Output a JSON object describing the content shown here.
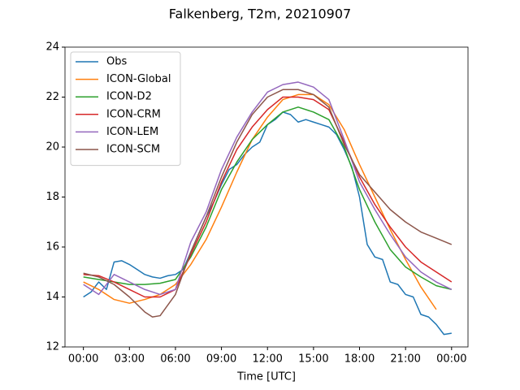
{
  "chart_data": {
    "type": "line",
    "title": "Falkenberg, T2m, 20210907",
    "xlabel": "Time [UTC]",
    "xlim": [
      -1.2,
      25.07
    ],
    "ylim": [
      12,
      24
    ],
    "xticks": [
      {
        "value": 0,
        "label": "00:00"
      },
      {
        "value": 3,
        "label": "03:00"
      },
      {
        "value": 6,
        "label": "06:00"
      },
      {
        "value": 9,
        "label": "09:00"
      },
      {
        "value": 12,
        "label": "12:00"
      },
      {
        "value": 15,
        "label": "15:00"
      },
      {
        "value": 18,
        "label": "18:00"
      },
      {
        "value": 21,
        "label": "21:00"
      },
      {
        "value": 24,
        "label": "00:00"
      }
    ],
    "yticks": [
      12,
      14,
      16,
      18,
      20,
      22,
      24
    ],
    "legend": "upper left",
    "series": [
      {
        "name": "Obs",
        "color": "#1f77b4",
        "x": [
          0,
          0.5,
          1,
          1.5,
          2,
          2.5,
          3,
          3.5,
          4,
          4.5,
          5,
          5.5,
          6,
          6.5,
          7,
          7.5,
          8,
          8.5,
          9,
          9.5,
          10,
          10.5,
          11,
          11.5,
          12,
          12.5,
          13,
          13.5,
          14,
          14.5,
          15,
          15.5,
          16,
          16.5,
          17,
          17.5,
          18,
          18.5,
          19,
          19.5,
          20,
          20.5,
          21,
          21.5,
          22,
          22.5,
          23,
          23.5,
          24
        ],
        "values": [
          14.0,
          14.2,
          14.6,
          14.3,
          15.4,
          15.45,
          15.3,
          15.1,
          14.9,
          14.8,
          14.75,
          14.85,
          14.9,
          15.1,
          15.8,
          16.5,
          17.2,
          17.8,
          18.5,
          19.1,
          19.3,
          19.7,
          20.0,
          20.2,
          20.9,
          21.1,
          21.4,
          21.3,
          21.0,
          21.1,
          21.0,
          20.9,
          20.8,
          20.5,
          19.9,
          19.2,
          18.0,
          16.1,
          15.6,
          15.5,
          14.6,
          14.5,
          14.1,
          14.0,
          13.3,
          13.2,
          12.9,
          12.5,
          12.55
        ]
      },
      {
        "name": "ICON-Global",
        "color": "#ff7f0e",
        "x": [
          0,
          1,
          2,
          3,
          4,
          5,
          6,
          7,
          8,
          9,
          10,
          11,
          12,
          13,
          14,
          15,
          16,
          17,
          18,
          19,
          20,
          21,
          22,
          23
        ],
        "values": [
          14.6,
          14.3,
          13.9,
          13.75,
          13.9,
          14.1,
          14.5,
          15.3,
          16.3,
          17.6,
          19.0,
          20.3,
          21.2,
          21.9,
          22.1,
          22.1,
          21.7,
          20.7,
          19.3,
          18.0,
          16.7,
          15.5,
          14.4,
          13.5
        ]
      },
      {
        "name": "ICON-D2",
        "color": "#2ca02c",
        "x": [
          0,
          1,
          2,
          3,
          4,
          5,
          6,
          7,
          8,
          9,
          10,
          11,
          12,
          13,
          14,
          15,
          16,
          17,
          18,
          19,
          20,
          21,
          22,
          23,
          24
        ],
        "values": [
          14.8,
          14.7,
          14.6,
          14.5,
          14.5,
          14.55,
          14.7,
          15.6,
          16.8,
          18.3,
          19.4,
          20.3,
          20.9,
          21.4,
          21.6,
          21.4,
          21.1,
          20.0,
          18.3,
          17.0,
          15.9,
          15.2,
          14.8,
          14.45,
          14.3
        ]
      },
      {
        "name": "ICON-CRM",
        "color": "#d62728",
        "x": [
          0,
          1,
          2,
          3,
          4,
          5,
          6,
          7,
          8,
          9,
          10,
          11,
          12,
          13,
          14,
          15,
          16,
          17,
          18,
          19,
          20,
          21,
          22,
          23,
          24
        ],
        "values": [
          14.9,
          14.85,
          14.6,
          14.3,
          14.0,
          14.0,
          14.3,
          15.7,
          17.0,
          18.6,
          19.9,
          20.8,
          21.5,
          22.0,
          22.0,
          21.9,
          21.5,
          20.2,
          18.8,
          17.7,
          16.8,
          16.0,
          15.4,
          15.0,
          14.6
        ]
      },
      {
        "name": "ICON-LEM",
        "color": "#9467bd",
        "x": [
          0,
          1,
          2,
          3,
          4,
          5,
          6,
          7,
          8,
          9,
          10,
          11,
          12,
          13,
          14,
          15,
          16,
          17,
          18,
          19,
          20,
          21,
          22,
          23,
          24
        ],
        "values": [
          14.5,
          14.1,
          14.9,
          14.6,
          14.3,
          14.1,
          14.3,
          16.2,
          17.4,
          19.1,
          20.4,
          21.4,
          22.2,
          22.5,
          22.6,
          22.4,
          21.9,
          20.3,
          18.6,
          17.5,
          16.5,
          15.6,
          15.0,
          14.6,
          14.3
        ]
      },
      {
        "name": "ICON-SCM",
        "color": "#8c564b",
        "x": [
          0,
          1,
          2,
          3,
          4,
          4.5,
          5,
          6,
          7,
          8,
          9,
          10,
          11,
          12,
          13,
          14,
          15,
          16,
          17,
          18,
          19,
          20,
          21,
          22,
          23,
          24
        ],
        "values": [
          14.95,
          14.8,
          14.5,
          14.0,
          13.4,
          13.2,
          13.25,
          14.1,
          15.8,
          17.2,
          18.8,
          20.2,
          21.3,
          22.0,
          22.3,
          22.3,
          22.1,
          21.6,
          20.1,
          18.9,
          18.2,
          17.5,
          17.0,
          16.6,
          16.35,
          16.1
        ]
      }
    ]
  }
}
